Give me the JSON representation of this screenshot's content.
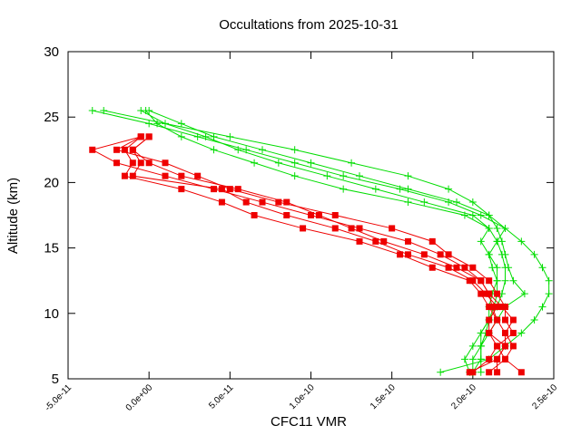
{
  "chart_data": {
    "type": "line",
    "title": "Occultations from 2025-10-31",
    "x_label": "CFC11 VMR",
    "y_label": "Altitude (km)",
    "xlim": [
      -5e-11,
      2.5e-10
    ],
    "ylim": [
      5,
      30
    ],
    "xticks": [
      {
        "value": -5e-11,
        "label": "-5.0e-11"
      },
      {
        "value": 0,
        "label": "0.0e+00"
      },
      {
        "value": 5e-11,
        "label": "5.0e-11"
      },
      {
        "value": 1e-10,
        "label": "1.0e-10"
      },
      {
        "value": 1.5e-10,
        "label": "1.5e-10"
      },
      {
        "value": 2e-10,
        "label": "2.0e-10"
      },
      {
        "value": 2.5e-10,
        "label": "2.5e-10"
      }
    ],
    "yticks": [
      5,
      10,
      15,
      20,
      25,
      30
    ],
    "grid": false,
    "series": [
      {
        "color": "#00dd00",
        "marker": "plus",
        "values": [
          25.5,
          24.5,
          23.5,
          22.5,
          21.5,
          20.5,
          19.5,
          18.5,
          17.5,
          16.5,
          15.5,
          14.5,
          13.5,
          12.5,
          11.5,
          10.5,
          9.5,
          8.5,
          7.5,
          6.5,
          5.5
        ],
        "x": [
          -3.5e-11,
          0.0,
          3e-11,
          6e-11,
          9e-11,
          1.2e-10,
          1.55e-10,
          1.85e-10,
          2.05e-10,
          2.2e-10,
          2.3e-10,
          2.38e-10,
          2.43e-10,
          2.47e-10,
          2.47e-10,
          2.43e-10,
          2.38e-10,
          2.3e-10,
          2.2e-10,
          2.1e-10,
          1.8e-10
        ]
      },
      {
        "color": "#00dd00",
        "marker": "plus",
        "values": [
          25.5,
          24.5,
          23.5,
          22.5,
          21.5,
          20.5,
          19.5,
          18.5,
          17.5,
          16.5,
          15.5,
          14.5,
          13.5,
          12.5,
          11.5,
          10.5,
          9.5,
          8.5,
          7.5,
          6.5,
          5.5
        ],
        "x": [
          -5e-12,
          1e-11,
          3.5e-11,
          5.5e-11,
          8e-11,
          1.1e-10,
          1.4e-10,
          1.7e-10,
          2e-10,
          2.1e-10,
          2.15e-10,
          2.18e-10,
          2.2e-10,
          2.2e-10,
          2.18e-10,
          2.15e-10,
          2.1e-10,
          2.05e-10,
          2.05e-10,
          2e-10,
          2e-10
        ]
      },
      {
        "color": "#00dd00",
        "marker": "plus",
        "values": [
          25.5,
          24.5,
          23.5,
          22.5,
          21.5,
          20.5,
          19.5,
          18.5,
          17.5,
          16.5,
          15.5,
          14.5,
          13.5,
          12.5,
          11.5,
          10.5,
          9.5,
          8.5,
          7.5,
          6.5,
          5.5
        ],
        "x": [
          -2.8e-11,
          1e-11,
          5e-11,
          9e-11,
          1.25e-10,
          1.6e-10,
          1.85e-10,
          2e-10,
          2.1e-10,
          2.15e-10,
          2.18e-10,
          2.2e-10,
          2.22e-10,
          2.25e-10,
          2.32e-10,
          2.2e-10,
          2.15e-10,
          2.1e-10,
          2.05e-10,
          2.05e-10,
          2e-10
        ]
      },
      {
        "color": "#00dd00",
        "marker": "plus",
        "values": [
          25.5,
          24.5,
          23.5,
          22.5,
          21.5,
          20.5,
          19.5,
          18.5,
          17.5,
          16.5,
          15.5,
          14.5,
          13.5,
          12.5,
          11.5,
          10.5,
          9.5,
          8.5,
          7.5,
          6.5,
          5.5
        ],
        "x": [
          0.0,
          2e-11,
          4e-11,
          7e-11,
          1e-10,
          1.3e-10,
          1.6e-10,
          1.9e-10,
          2.1e-10,
          2.2e-10,
          2.15e-10,
          2.1e-10,
          2.12e-10,
          2.15e-10,
          2.15e-10,
          2.13e-10,
          2.1e-10,
          2.08e-10,
          2.05e-10,
          2.05e-10,
          2.05e-10
        ]
      },
      {
        "color": "#00dd00",
        "marker": "plus",
        "values": [
          25.5,
          24.5,
          23.5,
          22.5,
          21.5,
          20.5,
          19.5,
          18.5,
          17.5,
          16.5,
          15.5,
          14.5,
          13.5,
          12.5,
          11.5,
          10.5,
          9.5,
          8.5,
          7.5,
          6.5,
          5.5
        ],
        "x": [
          -2e-12,
          5e-12,
          2e-11,
          4e-11,
          6.5e-11,
          9e-11,
          1.2e-10,
          1.6e-10,
          1.95e-10,
          2.1e-10,
          2.05e-10,
          2.1e-10,
          2.15e-10,
          2.15e-10,
          2.12e-10,
          2.1e-10,
          2.1e-10,
          2.05e-10,
          2e-10,
          1.95e-10,
          1.98e-10
        ]
      },
      {
        "color": "#ee0000",
        "marker": "square",
        "values": [
          23.5,
          22.5,
          21.5,
          20.5,
          19.5,
          18.5,
          17.5,
          16.5,
          15.5,
          14.5,
          13.5,
          12.5,
          11.5,
          10.5,
          9.5,
          8.5,
          7.5,
          6.5,
          5.5
        ],
        "x": [
          -5e-12,
          -3.5e-11,
          -2e-11,
          1e-11,
          4e-11,
          7e-11,
          1e-10,
          1.3e-10,
          1.6e-10,
          1.8e-10,
          1.95e-10,
          2.05e-10,
          2.1e-10,
          2.12e-10,
          2.15e-10,
          2.1e-10,
          2.15e-10,
          2.2e-10,
          2.3e-10
        ]
      },
      {
        "color": "#ee0000",
        "marker": "square",
        "values": [
          23.5,
          22.5,
          21.5,
          20.5,
          19.5,
          18.5,
          17.5,
          16.5,
          15.5,
          14.5,
          13.5,
          12.5,
          11.5,
          10.5,
          9.5,
          8.5,
          7.5,
          6.5,
          5.5
        ],
        "x": [
          -5e-12,
          -1.5e-11,
          -1e-11,
          -1.5e-11,
          2e-11,
          4.5e-11,
          6.5e-11,
          9.5e-11,
          1.3e-10,
          1.55e-10,
          1.75e-10,
          1.98e-10,
          2.05e-10,
          2.1e-10,
          2.15e-10,
          2.2e-10,
          2.2e-10,
          2.15e-10,
          2.15e-10
        ]
      },
      {
        "color": "#ee0000",
        "marker": "square",
        "values": [
          23.5,
          22.5,
          21.5,
          20.5,
          19.5,
          18.5,
          17.5,
          16.5,
          15.5,
          14.5,
          13.5,
          12.5,
          11.5,
          10.5,
          9.5,
          8.5,
          7.5,
          6.5,
          5.5
        ],
        "x": [
          0.0,
          -1e-11,
          0.0,
          2e-11,
          5.5e-11,
          8.5e-11,
          1.05e-10,
          1.25e-10,
          1.45e-10,
          1.7e-10,
          1.9e-10,
          2.05e-10,
          2.1e-10,
          2.18e-10,
          2.25e-10,
          2.2e-10,
          2.25e-10,
          2.2e-10,
          2.1e-10
        ]
      },
      {
        "color": "#ee0000",
        "marker": "square",
        "values": [
          23.5,
          22.5,
          21.5,
          20.5,
          19.5,
          18.5,
          17.5,
          16.5,
          15.5,
          14.5,
          13.5,
          12.5,
          11.5,
          10.5,
          9.5,
          8.5,
          7.5,
          6.5,
          5.5
        ],
        "x": [
          -5e-12,
          -2e-11,
          1e-11,
          3e-11,
          5e-11,
          8e-11,
          1.15e-10,
          1.5e-10,
          1.75e-10,
          1.85e-10,
          2e-10,
          2.1e-10,
          2.15e-10,
          2.2e-10,
          2.2e-10,
          2.25e-10,
          2.15e-10,
          2.1e-10,
          2e-10
        ]
      },
      {
        "color": "#ee0000",
        "marker": "square",
        "values": [
          23.5,
          22.5,
          21.5,
          20.5,
          19.5,
          18.5,
          17.5,
          16.5,
          15.5,
          14.5,
          13.5,
          12.5,
          11.5,
          10.5,
          9.5,
          8.5,
          7.5,
          6.5,
          5.5
        ],
        "x": [
          0.0,
          -1e-11,
          -5e-12,
          -1e-11,
          4.5e-11,
          6e-11,
          8.5e-11,
          1.15e-10,
          1.4e-10,
          1.6e-10,
          1.85e-10,
          2e-10,
          2.08e-10,
          2.15e-10,
          2.1e-10,
          2.1e-10,
          2.2e-10,
          2.15e-10,
          1.98e-10
        ]
      }
    ]
  }
}
